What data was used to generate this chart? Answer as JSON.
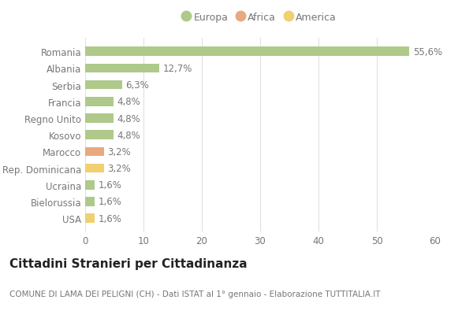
{
  "categories": [
    "Romania",
    "Albania",
    "Serbia",
    "Francia",
    "Regno Unito",
    "Kosovo",
    "Marocco",
    "Rep. Dominicana",
    "Ucraina",
    "Bielorussia",
    "USA"
  ],
  "values": [
    55.6,
    12.7,
    6.3,
    4.8,
    4.8,
    4.8,
    3.2,
    3.2,
    1.6,
    1.6,
    1.6
  ],
  "labels": [
    "55,6%",
    "12,7%",
    "6,3%",
    "4,8%",
    "4,8%",
    "4,8%",
    "3,2%",
    "3,2%",
    "1,6%",
    "1,6%",
    "1,6%"
  ],
  "continents": [
    "Europa",
    "Europa",
    "Europa",
    "Europa",
    "Europa",
    "Europa",
    "Africa",
    "America",
    "Europa",
    "Europa",
    "America"
  ],
  "colors": {
    "Europa": "#aec98a",
    "Africa": "#e8a97e",
    "America": "#f0d070"
  },
  "legend_items": [
    "Europa",
    "Africa",
    "America"
  ],
  "legend_colors": [
    "#aec98a",
    "#e8a97e",
    "#f0d070"
  ],
  "title": "Cittadini Stranieri per Cittadinanza",
  "subtitle": "COMUNE DI LAMA DEI PELIGNI (CH) - Dati ISTAT al 1° gennaio - Elaborazione TUTTITALIA.IT",
  "xlim": [
    0,
    60
  ],
  "xticks": [
    0,
    10,
    20,
    30,
    40,
    50,
    60
  ],
  "background_color": "#ffffff",
  "grid_color": "#e0e0e0",
  "bar_height": 0.55,
  "label_fontsize": 8.5,
  "tick_fontsize": 8.5,
  "title_fontsize": 11,
  "subtitle_fontsize": 7.5,
  "text_color": "#777777"
}
